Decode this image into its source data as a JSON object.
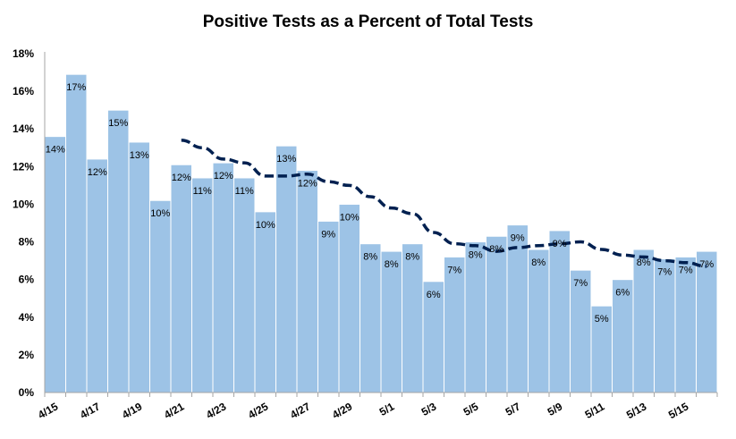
{
  "chart_data": {
    "type": "bar",
    "title": "Positive Tests as a Percent of Total Tests",
    "xlabel": "",
    "ylabel": "",
    "ylim": [
      0,
      0.18
    ],
    "yticks": [
      "0%",
      "2%",
      "4%",
      "6%",
      "8%",
      "10%",
      "12%",
      "14%",
      "16%",
      "18%"
    ],
    "grid": false,
    "colors": {
      "bar": "#9dc3e6",
      "bar_edge": "#ffffff",
      "trend": "#002050",
      "axis": "#a6a6a6"
    },
    "x_tick_labels": [
      "4/15",
      "4/17",
      "4/19",
      "4/21",
      "4/23",
      "4/25",
      "4/27",
      "4/29",
      "5/1",
      "5/3",
      "5/5",
      "5/7",
      "5/9",
      "5/11",
      "5/13",
      "5/15"
    ],
    "categories": [
      "4/15",
      "4/16",
      "4/17",
      "4/18",
      "4/19",
      "4/20",
      "4/21",
      "4/22",
      "4/23",
      "4/24",
      "4/25",
      "4/26",
      "4/27",
      "4/28",
      "4/29",
      "4/30",
      "5/1",
      "5/2",
      "5/3",
      "5/4",
      "5/5",
      "5/6",
      "5/7",
      "5/8",
      "5/9",
      "5/10",
      "5/11",
      "5/12",
      "5/13",
      "5/14",
      "5/15",
      "5/16"
    ],
    "series": [
      {
        "kind": "bar",
        "values": [
          0.136,
          0.169,
          0.124,
          0.15,
          0.133,
          0.102,
          0.121,
          0.114,
          0.122,
          0.114,
          0.096,
          0.131,
          0.118,
          0.091,
          0.1,
          0.079,
          0.075,
          0.079,
          0.059,
          0.072,
          0.08,
          0.083,
          0.089,
          0.076,
          0.086,
          0.065,
          0.046,
          0.06,
          0.076,
          0.071,
          0.072,
          0.075
        ],
        "labels": [
          "14%",
          "17%",
          "12%",
          "15%",
          "13%",
          "10%",
          "12%",
          "11%",
          "12%",
          "11%",
          "10%",
          "13%",
          "12%",
          "9%",
          "10%",
          "8%",
          "8%",
          "8%",
          "6%",
          "7%",
          "8%",
          "8%",
          "9%",
          "8%",
          "9%",
          "7%",
          "5%",
          "6%",
          "8%",
          "7%",
          "7%",
          "7%"
        ]
      },
      {
        "kind": "line",
        "style": "dashed",
        "values": [
          null,
          null,
          null,
          null,
          null,
          null,
          0.134,
          0.13,
          0.124,
          0.122,
          0.115,
          0.115,
          0.116,
          0.112,
          0.11,
          0.104,
          0.098,
          0.095,
          0.085,
          0.079,
          0.078,
          0.075,
          0.077,
          0.078,
          0.079,
          0.08,
          0.076,
          0.073,
          0.072,
          0.07,
          0.069,
          0.067
        ]
      }
    ]
  }
}
